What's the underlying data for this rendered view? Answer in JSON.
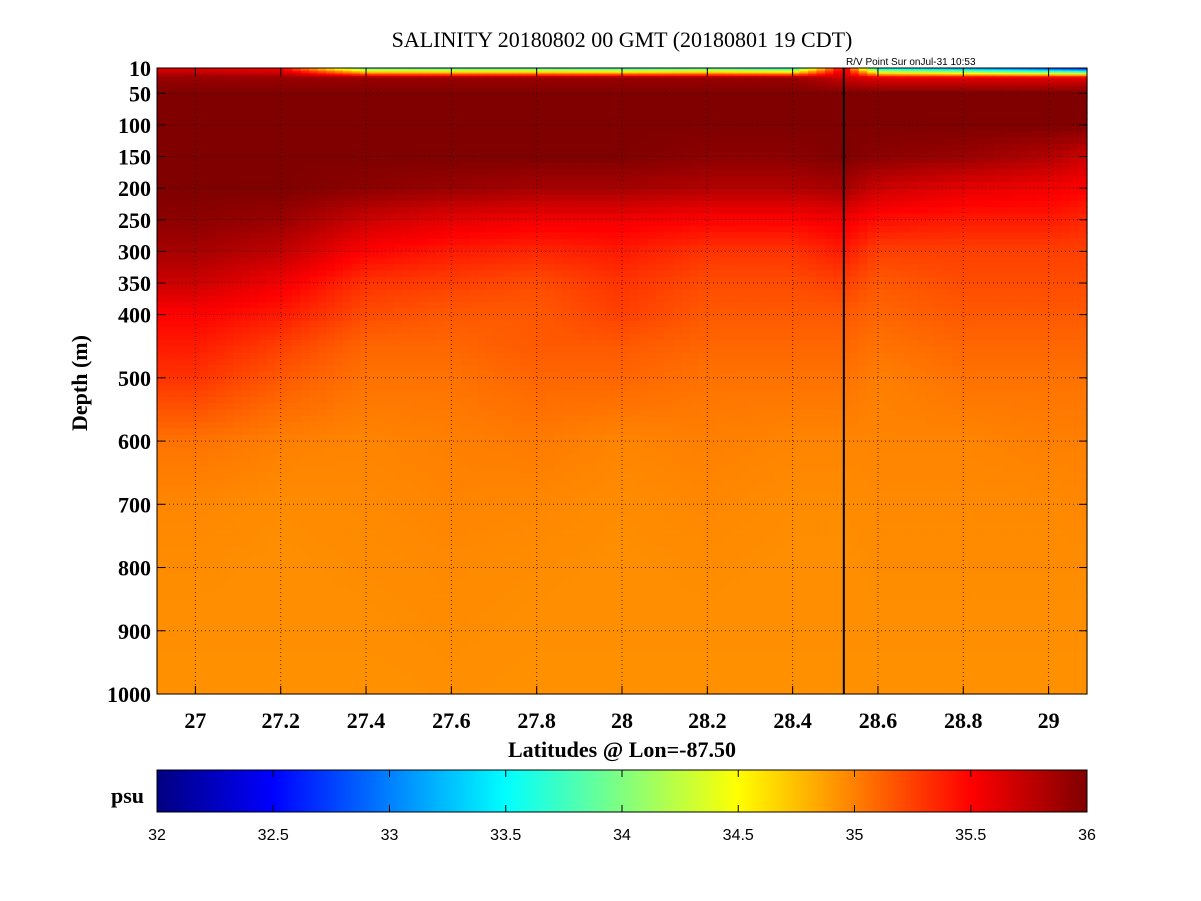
{
  "chart_data": {
    "type": "heatmap",
    "title": "SALINITY 20180802 00 GMT (20180801 19 CDT)",
    "annotation": "R/V Point Sur onJul-31 10:53",
    "xlabel": "Latitudes @ Lon=-87.50",
    "ylabel": "Depth (m)",
    "xlim": [
      26.91,
      29.09
    ],
    "ylim": [
      10,
      1000
    ],
    "y_reversed": true,
    "x_ticks": [
      27,
      27.2,
      27.4,
      27.6,
      27.8,
      28,
      28.2,
      28.4,
      28.6,
      28.8,
      29
    ],
    "x_tick_labels": [
      "27",
      "27.2",
      "27.4",
      "27.6",
      "27.8",
      "28",
      "28.2",
      "28.4",
      "28.6",
      "28.8",
      "29"
    ],
    "y_ticks": [
      10,
      50,
      100,
      150,
      200,
      250,
      300,
      350,
      400,
      500,
      600,
      700,
      800,
      900,
      1000
    ],
    "y_tick_labels": [
      "10",
      "50",
      "100",
      "150",
      "200",
      "250",
      "300",
      "350",
      "400",
      "500",
      "600",
      "700",
      "800",
      "900",
      "1000"
    ],
    "grid": true,
    "colormap": "jet",
    "marker_line": {
      "x": 28.52
    },
    "colorbar": {
      "label": "psu",
      "min": 32,
      "max": 36,
      "ticks": [
        32,
        32.5,
        33,
        33.5,
        34,
        34.5,
        35,
        35.5,
        36
      ],
      "tick_labels": [
        "32",
        "32.5",
        "33",
        "33.5",
        "34",
        "34.5",
        "35",
        "35.5",
        "36"
      ]
    },
    "x": [
      26.91,
      27.0,
      27.2,
      27.4,
      27.6,
      27.8,
      28.0,
      28.2,
      28.4,
      28.52,
      28.6,
      28.8,
      29.0,
      29.09
    ],
    "depths": [
      10,
      25,
      50,
      100,
      150,
      200,
      250,
      300,
      350,
      400,
      450,
      500,
      600,
      700,
      800,
      900,
      1000
    ],
    "z": [
      [
        35.6,
        35.6,
        35.5,
        33.8,
        33.7,
        33.7,
        33.6,
        33.7,
        33.5,
        35.6,
        33.4,
        33.0,
        32.6,
        32.4
      ],
      [
        35.9,
        35.9,
        35.9,
        35.9,
        35.9,
        35.9,
        35.9,
        35.9,
        35.9,
        35.7,
        35.6,
        35.6,
        35.6,
        35.6
      ],
      [
        36.0,
        36.0,
        36.0,
        36.0,
        36.0,
        36.0,
        36.0,
        36.0,
        36.0,
        36.0,
        36.0,
        36.0,
        36.0,
        36.0
      ],
      [
        36.0,
        36.0,
        36.0,
        36.0,
        36.0,
        36.0,
        36.0,
        36.0,
        36.0,
        36.0,
        36.0,
        36.0,
        36.0,
        36.0
      ],
      [
        36.0,
        36.0,
        36.0,
        36.0,
        36.0,
        36.0,
        36.0,
        35.95,
        35.95,
        36.0,
        35.95,
        35.9,
        35.8,
        35.7
      ],
      [
        36.0,
        36.0,
        36.0,
        35.95,
        35.9,
        35.85,
        35.85,
        35.8,
        35.8,
        35.85,
        35.7,
        35.6,
        35.55,
        35.5
      ],
      [
        35.95,
        35.95,
        35.9,
        35.7,
        35.6,
        35.55,
        35.55,
        35.5,
        35.5,
        35.55,
        35.45,
        35.4,
        35.4,
        35.35
      ],
      [
        35.85,
        35.85,
        35.75,
        35.5,
        35.4,
        35.35,
        35.4,
        35.3,
        35.3,
        35.4,
        35.25,
        35.25,
        35.25,
        35.25
      ],
      [
        35.7,
        35.7,
        35.55,
        35.3,
        35.25,
        35.2,
        35.3,
        35.2,
        35.2,
        35.25,
        35.15,
        35.2,
        35.2,
        35.2
      ],
      [
        35.5,
        35.5,
        35.4,
        35.2,
        35.15,
        35.15,
        35.25,
        35.15,
        35.15,
        35.15,
        35.1,
        35.15,
        35.15,
        35.15
      ],
      [
        35.4,
        35.4,
        35.25,
        35.1,
        35.1,
        35.15,
        35.15,
        35.1,
        35.1,
        35.1,
        35.05,
        35.1,
        35.1,
        35.1
      ],
      [
        35.3,
        35.3,
        35.15,
        35.05,
        35.05,
        35.1,
        35.1,
        35.05,
        35.05,
        35.05,
        35.0,
        35.05,
        35.05,
        35.05
      ],
      [
        35.05,
        35.05,
        35.0,
        34.98,
        35.0,
        35.02,
        34.98,
        35.0,
        34.98,
        34.98,
        34.98,
        34.98,
        35.0,
        35.0
      ],
      [
        34.97,
        34.97,
        34.95,
        34.96,
        34.98,
        34.97,
        34.95,
        34.97,
        34.95,
        34.95,
        34.96,
        34.96,
        34.96,
        34.97
      ],
      [
        34.95,
        34.95,
        34.94,
        34.95,
        34.96,
        34.95,
        34.94,
        34.95,
        34.94,
        34.94,
        34.95,
        34.95,
        34.95,
        34.95
      ],
      [
        34.94,
        34.94,
        34.94,
        34.94,
        34.95,
        34.94,
        34.94,
        34.94,
        34.94,
        34.94,
        34.94,
        34.94,
        34.94,
        34.94
      ],
      [
        34.93,
        34.93,
        34.93,
        34.93,
        34.94,
        34.93,
        34.93,
        34.93,
        34.93,
        34.93,
        34.93,
        34.93,
        34.93,
        34.93
      ]
    ]
  }
}
